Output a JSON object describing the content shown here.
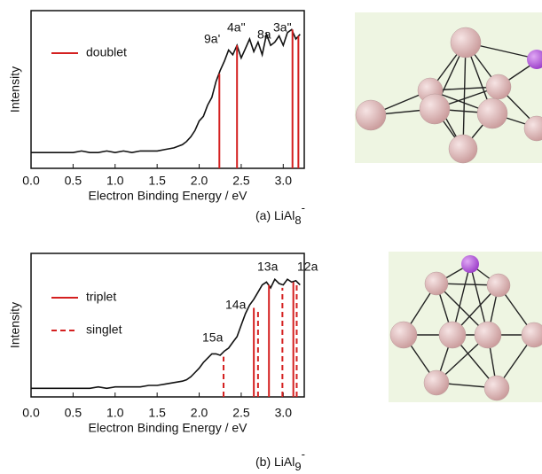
{
  "chart_data": [
    {
      "type": "line",
      "xlabel": "Electron Binding Energy / eV",
      "ylabel": "Intensity",
      "caption": {
        "text": "(a) LiAl",
        "subscript": "8",
        "superscript": "-"
      },
      "xlim": [
        0,
        3.25
      ],
      "ylim": [
        0,
        1
      ],
      "xticks": [
        {
          "value": 0,
          "label": "0.0"
        },
        0.5,
        {
          "value": 1,
          "label": "1.0"
        },
        1.5,
        {
          "value": 2,
          "label": "2.0"
        },
        2.5,
        {
          "value": 3,
          "label": "3.0"
        }
      ],
      "x": [
        0,
        0.1,
        0.2,
        0.3,
        0.4,
        0.5,
        0.6,
        0.7,
        0.8,
        0.9,
        1.0,
        1.1,
        1.2,
        1.3,
        1.4,
        1.5,
        1.6,
        1.7,
        1.8,
        1.85,
        1.9,
        1.95,
        2.0,
        2.05,
        2.1,
        2.15,
        2.2,
        2.25,
        2.3,
        2.35,
        2.4,
        2.45,
        2.5,
        2.55,
        2.6,
        2.65,
        2.7,
        2.75,
        2.8,
        2.85,
        2.9,
        2.95,
        3.0,
        3.05,
        3.1,
        3.15,
        3.2
      ],
      "spectrum": {
        "color": "#111111",
        "values": [
          0.1,
          0.1,
          0.1,
          0.1,
          0.1,
          0.1,
          0.11,
          0.1,
          0.1,
          0.11,
          0.1,
          0.11,
          0.1,
          0.11,
          0.11,
          0.11,
          0.12,
          0.13,
          0.15,
          0.17,
          0.2,
          0.24,
          0.3,
          0.33,
          0.4,
          0.45,
          0.55,
          0.62,
          0.68,
          0.75,
          0.72,
          0.78,
          0.7,
          0.76,
          0.82,
          0.74,
          0.8,
          0.72,
          0.85,
          0.78,
          0.8,
          0.84,
          0.78,
          0.86,
          0.88,
          0.82,
          0.85
        ]
      },
      "series": [
        {
          "name": "doublet",
          "color": "#d42020",
          "dashed": false,
          "x": [
            2.24,
            2.45,
            3.11,
            3.18
          ],
          "values": [
            0.6,
            0.78,
            0.88,
            0.84
          ]
        }
      ],
      "annotations": [
        "9a'",
        "4a\"",
        "8a",
        "3a\""
      ]
    },
    {
      "type": "line",
      "xlabel": "Electron Binding Energy / eV",
      "ylabel": "Intensity",
      "caption": {
        "text": "(b) LiAl",
        "subscript": "9",
        "superscript": "-"
      },
      "xlim": [
        0,
        3.25
      ],
      "ylim": [
        0,
        1
      ],
      "xticks": [
        {
          "value": 0,
          "label": "0.0"
        },
        0.5,
        {
          "value": 1,
          "label": "1.0"
        },
        1.5,
        {
          "value": 2,
          "label": "2.0"
        },
        2.5,
        {
          "value": 3,
          "label": "3.0"
        }
      ],
      "x": [
        0,
        0.1,
        0.2,
        0.3,
        0.4,
        0.5,
        0.6,
        0.7,
        0.8,
        0.9,
        1.0,
        1.1,
        1.2,
        1.3,
        1.4,
        1.5,
        1.6,
        1.7,
        1.8,
        1.85,
        1.9,
        1.95,
        2.0,
        2.05,
        2.1,
        2.15,
        2.2,
        2.25,
        2.3,
        2.35,
        2.4,
        2.45,
        2.5,
        2.55,
        2.6,
        2.65,
        2.7,
        2.75,
        2.8,
        2.85,
        2.9,
        2.95,
        3.0,
        3.05,
        3.1,
        3.15,
        3.2
      ],
      "spectrum": {
        "color": "#111111",
        "values": [
          0.06,
          0.06,
          0.06,
          0.06,
          0.06,
          0.06,
          0.06,
          0.06,
          0.07,
          0.06,
          0.07,
          0.07,
          0.07,
          0.07,
          0.08,
          0.08,
          0.09,
          0.1,
          0.11,
          0.12,
          0.14,
          0.17,
          0.2,
          0.24,
          0.27,
          0.3,
          0.3,
          0.29,
          0.32,
          0.34,
          0.38,
          0.42,
          0.5,
          0.58,
          0.64,
          0.68,
          0.73,
          0.78,
          0.8,
          0.76,
          0.82,
          0.79,
          0.78,
          0.82,
          0.8,
          0.81,
          0.78
        ]
      },
      "series": [
        {
          "name": "triplet",
          "color": "#d42020",
          "dashed": false,
          "x": [
            2.65,
            2.83,
            3.12
          ],
          "values": [
            0.62,
            0.78,
            0.8
          ]
        },
        {
          "name": "singlet",
          "color": "#d42020",
          "dashed": true,
          "x": [
            2.29,
            2.7,
            2.99,
            3.16
          ],
          "values": [
            0.28,
            0.6,
            0.76,
            0.8
          ]
        }
      ],
      "annotations": [
        "15a",
        "14a",
        "13a",
        "12a"
      ]
    }
  ]
}
